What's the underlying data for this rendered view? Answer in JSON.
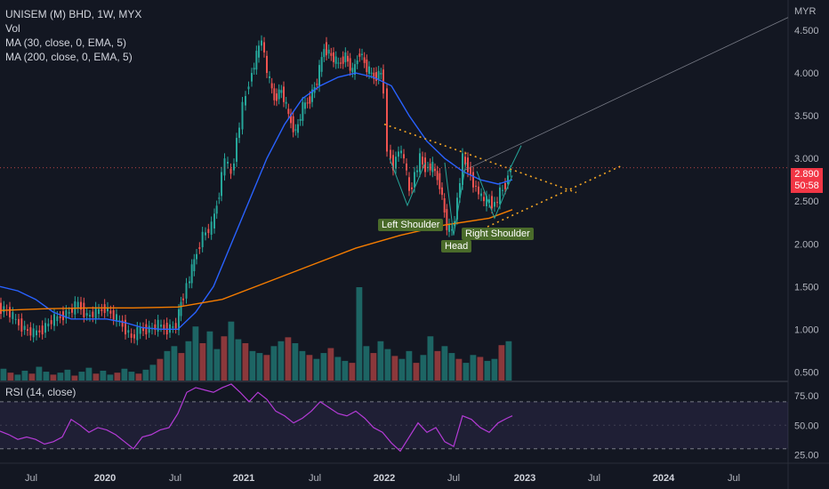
{
  "legend": {
    "symbol": "UNISEM (M) BHD, 1W, MYX",
    "vol": "Vol",
    "ma1": "MA (30, close, 0, EMA, 5)",
    "ma2": "MA (200, close, 0, EMA, 5)",
    "rsi": "RSI (14, close)"
  },
  "currency": "MYR",
  "last_price": "2.890",
  "countdown": "50:58",
  "annotations": {
    "left_shoulder": "Left Shoulder",
    "head": "Head",
    "right_shoulder": "Right Shoulder"
  },
  "colors": {
    "background": "#131722",
    "up": "#26a69a",
    "down": "#ef5350",
    "ma30": "#2962ff",
    "ma200": "#f57c00",
    "rsi": "#b43bd6",
    "trend": "#f5a623",
    "tag": "#4a6b2a"
  },
  "chart_data": {
    "type": "candlestick",
    "price_axis": {
      "ticks": [
        "4.500",
        "4.000",
        "3.500",
        "3.000",
        "2.500",
        "2.000",
        "1.500",
        "1.000",
        "0.500"
      ],
      "range": [
        0.4,
        4.75
      ]
    },
    "x_labels": [
      "Jul",
      "2020",
      "Jul",
      "2021",
      "Jul",
      "2022",
      "Jul",
      "2023",
      "Jul",
      "2024",
      "Jul"
    ],
    "rsi_axis": {
      "ticks": [
        "75.00",
        "50.00",
        "25.00"
      ],
      "range": [
        20,
        85
      ],
      "bands": [
        70,
        30
      ]
    },
    "price_path": [
      [
        0,
        1.25
      ],
      [
        10,
        1.22
      ],
      [
        20,
        1.1
      ],
      [
        30,
        1.0
      ],
      [
        40,
        0.95
      ],
      [
        50,
        1.0
      ],
      [
        60,
        1.1
      ],
      [
        70,
        1.15
      ],
      [
        80,
        1.2
      ],
      [
        90,
        1.3
      ],
      [
        100,
        1.15
      ],
      [
        110,
        1.2
      ],
      [
        120,
        1.25
      ],
      [
        130,
        1.15
      ],
      [
        140,
        1.05
      ],
      [
        150,
        0.9
      ],
      [
        160,
        1.0
      ],
      [
        170,
        1.0
      ],
      [
        180,
        1.05
      ],
      [
        190,
        1.0
      ],
      [
        200,
        1.05
      ],
      [
        205,
        1.3
      ],
      [
        212,
        1.5
      ],
      [
        220,
        1.8
      ],
      [
        230,
        2.1
      ],
      [
        240,
        2.2
      ],
      [
        248,
        2.6
      ],
      [
        255,
        3.0
      ],
      [
        262,
        2.8
      ],
      [
        268,
        3.2
      ],
      [
        275,
        3.6
      ],
      [
        282,
        3.9
      ],
      [
        290,
        4.2
      ],
      [
        296,
        4.4
      ],
      [
        302,
        4.0
      ],
      [
        310,
        3.7
      ],
      [
        318,
        3.8
      ],
      [
        326,
        3.5
      ],
      [
        334,
        3.3
      ],
      [
        342,
        3.6
      ],
      [
        350,
        3.7
      ],
      [
        358,
        3.9
      ],
      [
        366,
        4.3
      ],
      [
        374,
        4.2
      ],
      [
        382,
        4.1
      ],
      [
        390,
        4.2
      ],
      [
        398,
        4.0
      ],
      [
        406,
        4.25
      ],
      [
        414,
        4.05
      ],
      [
        422,
        3.95
      ],
      [
        430,
        4.0
      ],
      [
        434,
        3.8
      ],
      [
        438,
        3.1
      ],
      [
        444,
        2.9
      ],
      [
        450,
        3.1
      ],
      [
        456,
        3.0
      ],
      [
        462,
        2.6
      ],
      [
        468,
        2.8
      ],
      [
        474,
        3.0
      ],
      [
        480,
        2.9
      ],
      [
        488,
        2.9
      ],
      [
        496,
        2.7
      ],
      [
        504,
        2.2
      ],
      [
        510,
        2.15
      ],
      [
        516,
        2.5
      ],
      [
        522,
        3.0
      ],
      [
        528,
        2.9
      ],
      [
        534,
        2.7
      ],
      [
        540,
        2.6
      ],
      [
        546,
        2.5
      ],
      [
        552,
        2.5
      ],
      [
        558,
        2.45
      ],
      [
        564,
        2.6
      ],
      [
        570,
        2.7
      ],
      [
        576,
        2.9
      ]
    ],
    "ma30": [
      [
        0,
        1.5
      ],
      [
        20,
        1.45
      ],
      [
        40,
        1.35
      ],
      [
        60,
        1.2
      ],
      [
        80,
        1.12
      ],
      [
        100,
        1.12
      ],
      [
        120,
        1.12
      ],
      [
        140,
        1.08
      ],
      [
        160,
        1.02
      ],
      [
        180,
        1.0
      ],
      [
        200,
        1.0
      ],
      [
        220,
        1.2
      ],
      [
        240,
        1.5
      ],
      [
        260,
        2.0
      ],
      [
        280,
        2.5
      ],
      [
        300,
        3.0
      ],
      [
        320,
        3.4
      ],
      [
        340,
        3.7
      ],
      [
        360,
        3.85
      ],
      [
        380,
        3.95
      ],
      [
        400,
        4.0
      ],
      [
        420,
        3.95
      ],
      [
        440,
        3.85
      ],
      [
        460,
        3.5
      ],
      [
        480,
        3.2
      ],
      [
        500,
        3.0
      ],
      [
        520,
        2.85
      ],
      [
        540,
        2.75
      ],
      [
        560,
        2.7
      ],
      [
        576,
        2.75
      ]
    ],
    "ma200": [
      [
        0,
        1.22
      ],
      [
        50,
        1.24
      ],
      [
        100,
        1.25
      ],
      [
        150,
        1.25
      ],
      [
        200,
        1.26
      ],
      [
        250,
        1.35
      ],
      [
        300,
        1.55
      ],
      [
        350,
        1.75
      ],
      [
        400,
        1.95
      ],
      [
        450,
        2.1
      ],
      [
        500,
        2.22
      ],
      [
        550,
        2.3
      ],
      [
        576,
        2.4
      ]
    ],
    "rsi": [
      [
        0,
        45
      ],
      [
        10,
        42
      ],
      [
        20,
        38
      ],
      [
        30,
        40
      ],
      [
        40,
        38
      ],
      [
        50,
        34
      ],
      [
        60,
        36
      ],
      [
        70,
        40
      ],
      [
        80,
        55
      ],
      [
        90,
        50
      ],
      [
        100,
        44
      ],
      [
        110,
        48
      ],
      [
        120,
        46
      ],
      [
        130,
        42
      ],
      [
        140,
        36
      ],
      [
        150,
        30
      ],
      [
        160,
        40
      ],
      [
        170,
        42
      ],
      [
        180,
        46
      ],
      [
        190,
        48
      ],
      [
        200,
        60
      ],
      [
        210,
        78
      ],
      [
        220,
        82
      ],
      [
        230,
        80
      ],
      [
        240,
        78
      ],
      [
        250,
        82
      ],
      [
        260,
        85
      ],
      [
        270,
        78
      ],
      [
        280,
        70
      ],
      [
        290,
        78
      ],
      [
        300,
        72
      ],
      [
        310,
        62
      ],
      [
        320,
        58
      ],
      [
        330,
        52
      ],
      [
        340,
        56
      ],
      [
        350,
        62
      ],
      [
        360,
        70
      ],
      [
        370,
        65
      ],
      [
        380,
        60
      ],
      [
        390,
        58
      ],
      [
        400,
        62
      ],
      [
        410,
        56
      ],
      [
        420,
        48
      ],
      [
        430,
        44
      ],
      [
        440,
        35
      ],
      [
        450,
        28
      ],
      [
        460,
        40
      ],
      [
        470,
        52
      ],
      [
        480,
        44
      ],
      [
        490,
        48
      ],
      [
        500,
        36
      ],
      [
        510,
        32
      ],
      [
        520,
        58
      ],
      [
        530,
        55
      ],
      [
        540,
        48
      ],
      [
        550,
        44
      ],
      [
        560,
        52
      ],
      [
        570,
        56
      ],
      [
        576,
        58
      ]
    ],
    "volume": [
      12,
      8,
      6,
      10,
      7,
      14,
      9,
      6,
      8,
      11,
      5,
      9,
      13,
      7,
      10,
      6,
      8,
      12,
      9,
      7,
      11,
      16,
      22,
      30,
      35,
      28,
      40,
      55,
      38,
      50,
      32,
      45,
      60,
      42,
      38,
      30,
      28,
      26,
      35,
      40,
      44,
      38,
      30,
      26,
      22,
      28,
      33,
      24,
      20,
      18,
      95,
      35,
      28,
      40,
      32,
      25,
      22,
      30,
      18,
      26,
      45,
      30,
      35,
      28,
      22,
      18,
      26,
      24,
      20,
      22,
      36,
      40
    ]
  }
}
